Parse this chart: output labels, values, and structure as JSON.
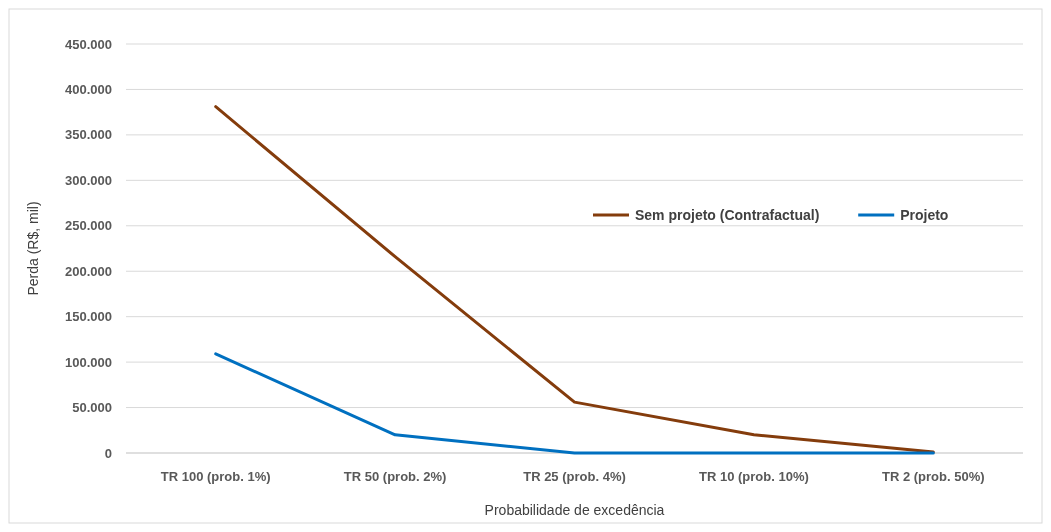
{
  "chart_data": {
    "type": "line",
    "xlabel": "Probabilidade de excedência",
    "ylabel": "Perda (R$, mil)",
    "categories": [
      "TR 100 (prob. 1%)",
      "TR 50 (prob. 2%)",
      "TR 25 (prob. 4%)",
      "TR 10 (prob. 10%)",
      "TR 2 (prob. 50%)"
    ],
    "series": [
      {
        "name": "Sem projeto (Contrafactual)",
        "color": "#843c0c",
        "values": [
          381000,
          216000,
          56000,
          20000,
          1000
        ]
      },
      {
        "name": "Projeto",
        "color": "#0070c0",
        "values": [
          109000,
          20000,
          0,
          0,
          0
        ]
      }
    ],
    "ylim": [
      0,
      450000
    ],
    "yticks": [
      {
        "value": 0,
        "label": "0"
      },
      {
        "value": 50000,
        "label": "50.000"
      },
      {
        "value": 100000,
        "label": "100.000"
      },
      {
        "value": 150000,
        "label": "150.000"
      },
      {
        "value": 200000,
        "label": "200.000"
      },
      {
        "value": 250000,
        "label": "250.000"
      },
      {
        "value": 300000,
        "label": "300.000"
      },
      {
        "value": 350000,
        "label": "350.000"
      },
      {
        "value": 400000,
        "label": "400.000"
      },
      {
        "value": 450000,
        "label": "450.000"
      }
    ],
    "grid": "y",
    "legend": "right",
    "line_style": "solid",
    "marker": "none"
  }
}
